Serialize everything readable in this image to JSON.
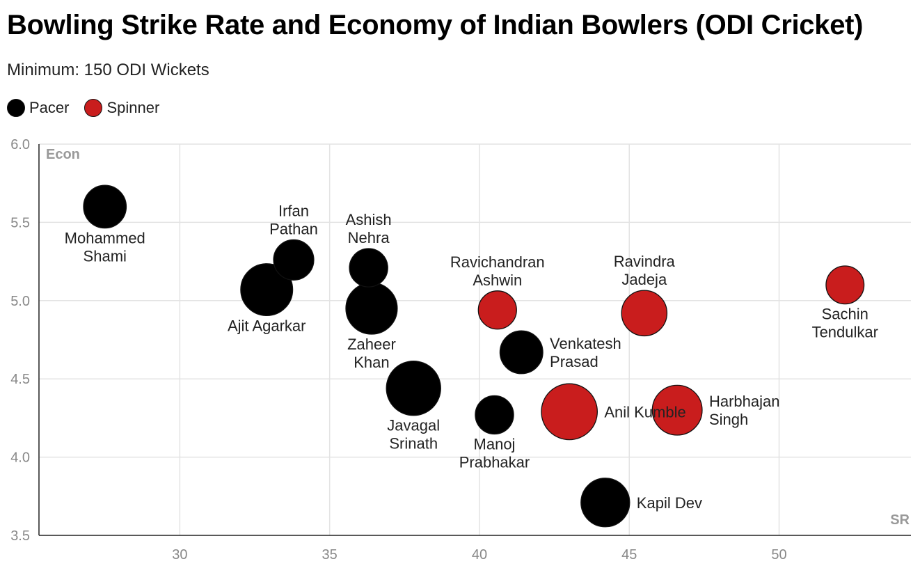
{
  "title": "Bowling Strike Rate and Economy of Indian Bowlers (ODI Cricket)",
  "subtitle": "Minimum: 150 ODI Wickets",
  "legend": [
    {
      "label": "Pacer",
      "color": "#000000"
    },
    {
      "label": "Spinner",
      "color": "#c91d1d"
    }
  ],
  "chart_data": {
    "type": "scatter",
    "xlabel": "SR",
    "ylabel": "Econ",
    "xlim": [
      25.3,
      54.4
    ],
    "ylim": [
      3.5,
      6.0
    ],
    "x_ticks": [
      30,
      35,
      40,
      45,
      50
    ],
    "y_ticks": [
      3.5,
      4.0,
      4.5,
      5.0,
      5.5,
      6.0
    ],
    "y_tick_labels": [
      "3.5",
      "4.0",
      "4.5",
      "5.0",
      "5.5",
      "6.0"
    ],
    "grid": true,
    "legend_position": "top-left",
    "series": [
      {
        "name": "Pacer",
        "color": "#000000",
        "points": [
          {
            "label": "Mohammed Shami",
            "lines": [
              "Mohammed",
              "Shami"
            ],
            "x": 27.5,
            "y": 5.6,
            "wickets": 195,
            "label_pos": "below"
          },
          {
            "label": "Irfan Pathan",
            "lines": [
              "Irfan",
              "Pathan"
            ],
            "x": 33.8,
            "y": 5.26,
            "wickets": 173,
            "label_pos": "above"
          },
          {
            "label": "Ajit Agarkar",
            "lines": [
              "Ajit Agarkar"
            ],
            "x": 32.9,
            "y": 5.07,
            "wickets": 288,
            "label_pos": "below"
          },
          {
            "label": "Ashish Nehra",
            "lines": [
              "Ashish",
              "Nehra"
            ],
            "x": 36.3,
            "y": 5.21,
            "wickets": 157,
            "label_pos": "above"
          },
          {
            "label": "Zaheer Khan",
            "lines": [
              "Zaheer",
              "Khan"
            ],
            "x": 36.4,
            "y": 4.95,
            "wickets": 282,
            "label_pos": "below"
          },
          {
            "label": "Javagal Srinath",
            "lines": [
              "Javagal",
              "Srinath"
            ],
            "x": 37.8,
            "y": 4.44,
            "wickets": 315,
            "label_pos": "below"
          },
          {
            "label": "Venkatesh Prasad",
            "lines": [
              "Venkatesh",
              "Prasad"
            ],
            "x": 41.4,
            "y": 4.67,
            "wickets": 196,
            "label_pos": "right"
          },
          {
            "label": "Manoj Prabhakar",
            "lines": [
              "Manoj",
              "Prabhakar"
            ],
            "x": 40.5,
            "y": 4.27,
            "wickets": 157,
            "label_pos": "below"
          },
          {
            "label": "Kapil Dev",
            "lines": [
              "Kapil Dev"
            ],
            "x": 44.2,
            "y": 3.71,
            "wickets": 253,
            "label_pos": "right"
          }
        ]
      },
      {
        "name": "Spinner",
        "color": "#c91d1d",
        "points": [
          {
            "label": "Ravichandran Ashwin",
            "lines": [
              "Ravichandran",
              "Ashwin"
            ],
            "x": 40.6,
            "y": 4.94,
            "wickets": 156,
            "label_pos": "above"
          },
          {
            "label": "Ravindra Jadeja",
            "lines": [
              "Ravindra",
              "Jadeja"
            ],
            "x": 45.5,
            "y": 4.92,
            "wickets": 220,
            "label_pos": "above"
          },
          {
            "label": "Sachin Tendulkar",
            "lines": [
              "Sachin",
              "Tendulkar"
            ],
            "x": 52.2,
            "y": 5.1,
            "wickets": 154,
            "label_pos": "below"
          },
          {
            "label": "Anil Kumble",
            "lines": [
              "Anil Kumble"
            ],
            "x": 43.0,
            "y": 4.29,
            "wickets": 334,
            "label_pos": "right"
          },
          {
            "label": "Harbhajan Singh",
            "lines": [
              "Harbhajan",
              "Singh"
            ],
            "x": 46.6,
            "y": 4.3,
            "wickets": 265,
            "label_pos": "right"
          }
        ]
      }
    ]
  }
}
